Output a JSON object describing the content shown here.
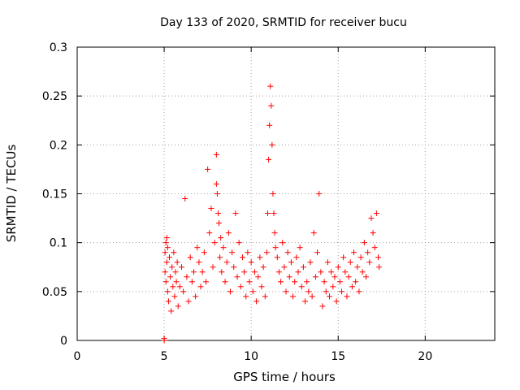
{
  "chart_data": {
    "type": "scatter",
    "title": "Day 133 of 2020, SRMTID for receiver bucu",
    "xlabel": "GPS time / hours",
    "ylabel": "SRMTID / TECUs",
    "xlim": [
      0,
      24
    ],
    "ylim": [
      0,
      0.3
    ],
    "xticks": [
      0,
      5,
      10,
      15,
      20
    ],
    "yticks": [
      0,
      0.05,
      0.1,
      0.15,
      0.2,
      0.25,
      0.3
    ],
    "xtick_labels": [
      "0",
      "5",
      "10",
      "15",
      "20"
    ],
    "ytick_labels": [
      "0",
      "0.05",
      "0.1",
      "0.15",
      "0.2",
      "0.25",
      "0.3"
    ],
    "grid": true,
    "marker": "+",
    "color": "#ff0000",
    "series": [
      {
        "x": [
          5.0,
          5.0,
          5.05,
          5.05,
          5.1,
          5.1,
          5.15,
          5.15,
          5.2,
          5.2,
          5.25,
          5.3,
          5.35,
          5.4,
          5.45,
          5.5,
          5.55,
          5.6,
          5.65,
          5.7,
          5.75,
          5.8,
          5.9,
          6.0,
          6.1,
          6.2,
          6.3,
          6.4,
          6.5,
          6.6,
          6.7,
          6.8,
          6.9,
          7.0,
          7.1,
          7.2,
          7.3,
          7.4,
          7.5,
          7.6,
          7.7,
          7.8,
          7.9,
          8.0,
          8.0,
          8.05,
          8.1,
          8.15,
          8.2,
          8.25,
          8.3,
          8.4,
          8.5,
          8.6,
          8.7,
          8.8,
          8.9,
          9.0,
          9.1,
          9.2,
          9.3,
          9.4,
          9.5,
          9.6,
          9.7,
          9.8,
          9.9,
          10.0,
          10.1,
          10.2,
          10.3,
          10.4,
          10.5,
          10.6,
          10.7,
          10.8,
          10.9,
          10.95,
          11.0,
          11.05,
          11.1,
          11.15,
          11.2,
          11.25,
          11.3,
          11.35,
          11.4,
          11.5,
          11.6,
          11.7,
          11.8,
          11.9,
          12.0,
          12.1,
          12.2,
          12.3,
          12.4,
          12.5,
          12.6,
          12.7,
          12.8,
          12.9,
          13.0,
          13.1,
          13.2,
          13.3,
          13.4,
          13.5,
          13.6,
          13.7,
          13.8,
          13.9,
          14.0,
          14.1,
          14.2,
          14.3,
          14.4,
          14.5,
          14.6,
          14.7,
          14.8,
          14.9,
          15.0,
          15.1,
          15.2,
          15.3,
          15.4,
          15.5,
          15.6,
          15.7,
          15.8,
          15.9,
          16.0,
          16.1,
          16.2,
          16.3,
          16.4,
          16.5,
          16.6,
          16.7,
          16.8,
          16.9,
          17.0,
          17.1,
          17.2,
          17.3,
          17.35
        ],
        "y": [
          0.0,
          0.002,
          0.07,
          0.09,
          0.1,
          0.06,
          0.08,
          0.105,
          0.05,
          0.095,
          0.04,
          0.085,
          0.065,
          0.03,
          0.075,
          0.055,
          0.09,
          0.045,
          0.07,
          0.06,
          0.08,
          0.035,
          0.055,
          0.075,
          0.05,
          0.145,
          0.065,
          0.04,
          0.085,
          0.06,
          0.07,
          0.045,
          0.095,
          0.08,
          0.055,
          0.07,
          0.09,
          0.06,
          0.175,
          0.11,
          0.135,
          0.075,
          0.1,
          0.19,
          0.16,
          0.15,
          0.13,
          0.12,
          0.085,
          0.105,
          0.07,
          0.095,
          0.06,
          0.08,
          0.11,
          0.05,
          0.09,
          0.075,
          0.13,
          0.065,
          0.1,
          0.055,
          0.085,
          0.07,
          0.045,
          0.09,
          0.06,
          0.08,
          0.05,
          0.07,
          0.04,
          0.065,
          0.085,
          0.055,
          0.075,
          0.045,
          0.09,
          0.13,
          0.185,
          0.22,
          0.26,
          0.24,
          0.2,
          0.15,
          0.13,
          0.11,
          0.095,
          0.085,
          0.07,
          0.06,
          0.1,
          0.075,
          0.05,
          0.09,
          0.065,
          0.08,
          0.045,
          0.06,
          0.085,
          0.07,
          0.095,
          0.055,
          0.075,
          0.04,
          0.06,
          0.05,
          0.08,
          0.045,
          0.11,
          0.065,
          0.09,
          0.15,
          0.07,
          0.035,
          0.06,
          0.05,
          0.08,
          0.045,
          0.07,
          0.055,
          0.065,
          0.04,
          0.075,
          0.06,
          0.05,
          0.085,
          0.07,
          0.045,
          0.065,
          0.08,
          0.055,
          0.09,
          0.06,
          0.075,
          0.05,
          0.085,
          0.07,
          0.1,
          0.065,
          0.09,
          0.08,
          0.125,
          0.11,
          0.095,
          0.13,
          0.085,
          0.075
        ]
      }
    ]
  }
}
